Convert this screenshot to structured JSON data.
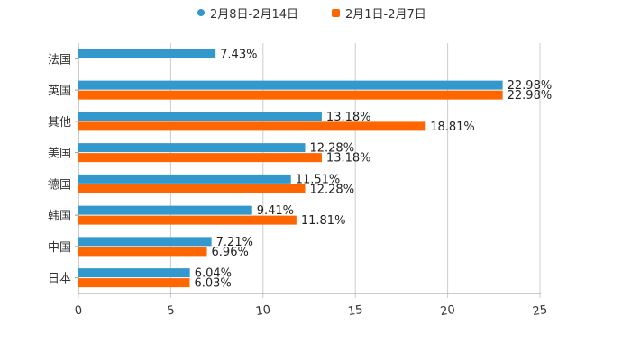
{
  "chart_data": {
    "type": "bar",
    "orientation": "horizontal",
    "categories": [
      "法国",
      "英国",
      "其他",
      "美国",
      "德国",
      "韩国",
      "中国",
      "日本"
    ],
    "series": [
      {
        "name": "2月8日-2月14日",
        "color": "#3399cc",
        "values": [
          7.43,
          22.98,
          13.18,
          12.28,
          11.51,
          9.41,
          7.21,
          6.04
        ],
        "labels": [
          "7.43%",
          "22.98%",
          "13.18%",
          "12.28%",
          "11.51%",
          "9.41%",
          "7.21%",
          "6.04%"
        ]
      },
      {
        "name": "2月1日-2月7日",
        "color": "#ff6600",
        "values": [
          null,
          22.98,
          18.81,
          13.18,
          12.28,
          11.81,
          6.96,
          6.03
        ],
        "labels": [
          "",
          "22.98%",
          "18.81%",
          "13.18%",
          "12.28%",
          "11.81%",
          "6.96%",
          "6.03%"
        ]
      }
    ],
    "xlim": [
      0,
      25
    ],
    "xticks": [
      "0",
      "5",
      "10",
      "15",
      "20",
      "25"
    ],
    "grid": "vertical",
    "legend": "top-center",
    "title": "",
    "xlabel": "",
    "ylabel": ""
  }
}
